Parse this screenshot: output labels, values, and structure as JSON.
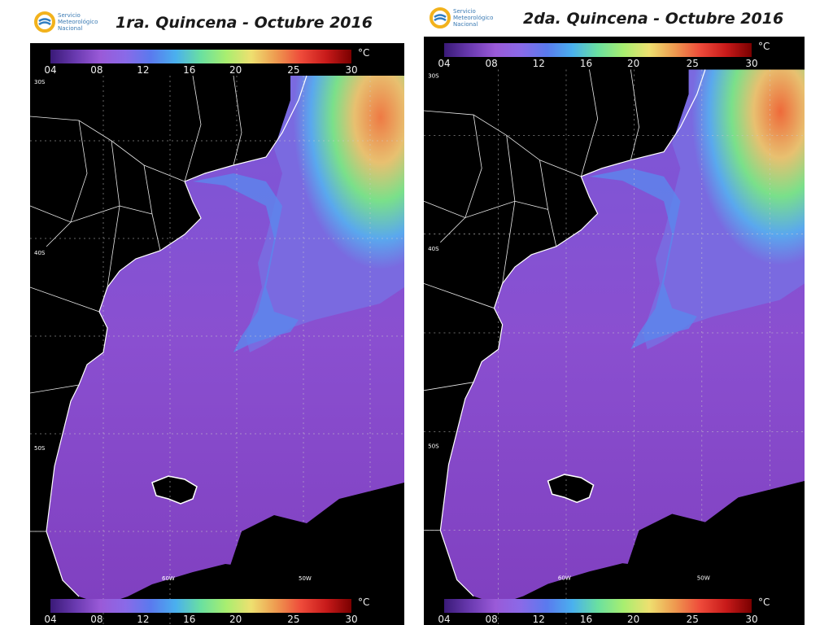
{
  "logo": {
    "line1": "Servicio",
    "line2": "Meteorológico",
    "line3": "Nacional"
  },
  "panels": [
    {
      "title": "1ra. Quincena - Octubre 2016"
    },
    {
      "title": "2da. Quincena - Octubre 2016"
    }
  ],
  "colorbar": {
    "unit": "°C",
    "ticks": [
      "04",
      "08",
      "12",
      "16",
      "20",
      "25",
      "30"
    ],
    "tick_values": [
      4,
      8,
      12,
      16,
      20,
      25,
      30
    ],
    "range": [
      4,
      30
    ],
    "colors": [
      "#3a1a78",
      "#6a3ab0",
      "#9a5ad8",
      "#8a6ae8",
      "#5a7aee",
      "#4ab0ee",
      "#6ae0a0",
      "#a8ee70",
      "#eee070",
      "#ee9a50",
      "#ee4a3a",
      "#c81a1a",
      "#7a0000"
    ]
  },
  "map_labels": {
    "lat": [
      "30S",
      "40S",
      "50S"
    ],
    "lon": [
      "60W",
      "50W"
    ]
  },
  "legend_colors": {
    "land": "#000000",
    "water_cold": "#8a4fd0",
    "water_mid": "#5a7aee",
    "water_warm": "#6ae0a0",
    "water_hot": "#ee5a3a"
  }
}
